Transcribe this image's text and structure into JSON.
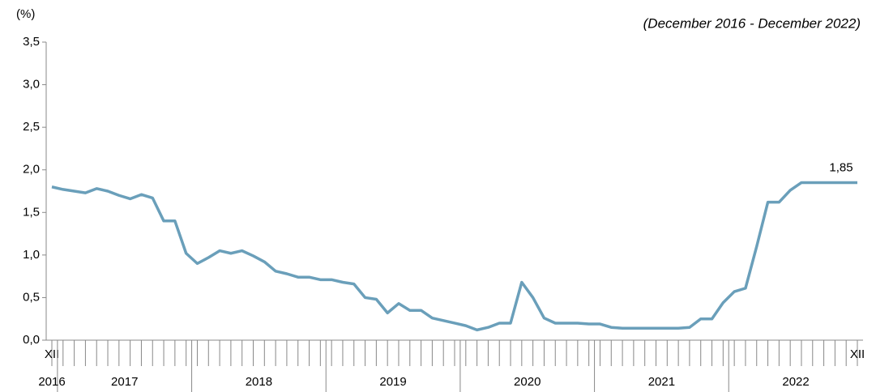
{
  "chart_data": {
    "type": "line",
    "subtitle": "(December 2016 - December 2022)",
    "y_label": "(%)",
    "categories": [
      "XII",
      null,
      null,
      null,
      null,
      null,
      null,
      null,
      null,
      null,
      null,
      null,
      null,
      null,
      null,
      null,
      null,
      null,
      null,
      null,
      null,
      null,
      null,
      null,
      null,
      null,
      null,
      null,
      null,
      null,
      null,
      null,
      null,
      null,
      null,
      null,
      null,
      null,
      null,
      null,
      null,
      null,
      null,
      null,
      null,
      null,
      null,
      null,
      null,
      null,
      null,
      null,
      null,
      null,
      null,
      null,
      null,
      null,
      null,
      null,
      null,
      null,
      null,
      null,
      null,
      null,
      null,
      null,
      null,
      null,
      null,
      null,
      "XII"
    ],
    "groups": [
      {
        "label": "2016",
        "start": 0,
        "end": 0
      },
      {
        "label": "2017",
        "start": 1,
        "end": 12
      },
      {
        "label": "2018",
        "start": 13,
        "end": 24
      },
      {
        "label": "2019",
        "start": 25,
        "end": 36
      },
      {
        "label": "2020",
        "start": 37,
        "end": 48
      },
      {
        "label": "2021",
        "start": 49,
        "end": 60
      },
      {
        "label": "2022",
        "start": 61,
        "end": 72
      }
    ],
    "series": [
      {
        "color": "#6a9fba",
        "values": [
          1.8,
          1.77,
          1.75,
          1.73,
          1.78,
          1.75,
          1.7,
          1.66,
          1.71,
          1.67,
          1.4,
          1.4,
          1.02,
          0.9,
          0.97,
          1.05,
          1.02,
          1.05,
          0.99,
          0.92,
          0.81,
          0.78,
          0.74,
          0.74,
          0.71,
          0.71,
          0.68,
          0.66,
          0.5,
          0.48,
          0.32,
          0.43,
          0.35,
          0.35,
          0.26,
          0.23,
          0.2,
          0.17,
          0.12,
          0.15,
          0.2,
          0.2,
          0.68,
          0.5,
          0.26,
          0.2,
          0.2,
          0.2,
          0.19,
          0.19,
          0.15,
          0.14,
          0.14,
          0.14,
          0.14,
          0.14,
          0.14,
          0.15,
          0.25,
          0.25,
          0.44,
          0.57,
          0.61,
          1.1,
          1.62,
          1.62,
          1.76,
          1.85,
          1.85,
          1.85,
          1.85,
          1.85,
          1.85
        ],
        "value_labels": {
          "72": "1,85"
        }
      }
    ],
    "ylim": [
      0,
      3.5
    ],
    "yticks": [
      {
        "value": 0,
        "label": "0,0"
      },
      {
        "value": 0.5,
        "label": "0,5"
      },
      {
        "value": 1,
        "label": "1,0"
      },
      {
        "value": 1.5,
        "label": "1,5"
      },
      {
        "value": 2,
        "label": "2,0"
      },
      {
        "value": 2.5,
        "label": "2,5"
      },
      {
        "value": 3,
        "label": "3,0"
      },
      {
        "value": 3.5,
        "label": "3,5"
      }
    ]
  }
}
